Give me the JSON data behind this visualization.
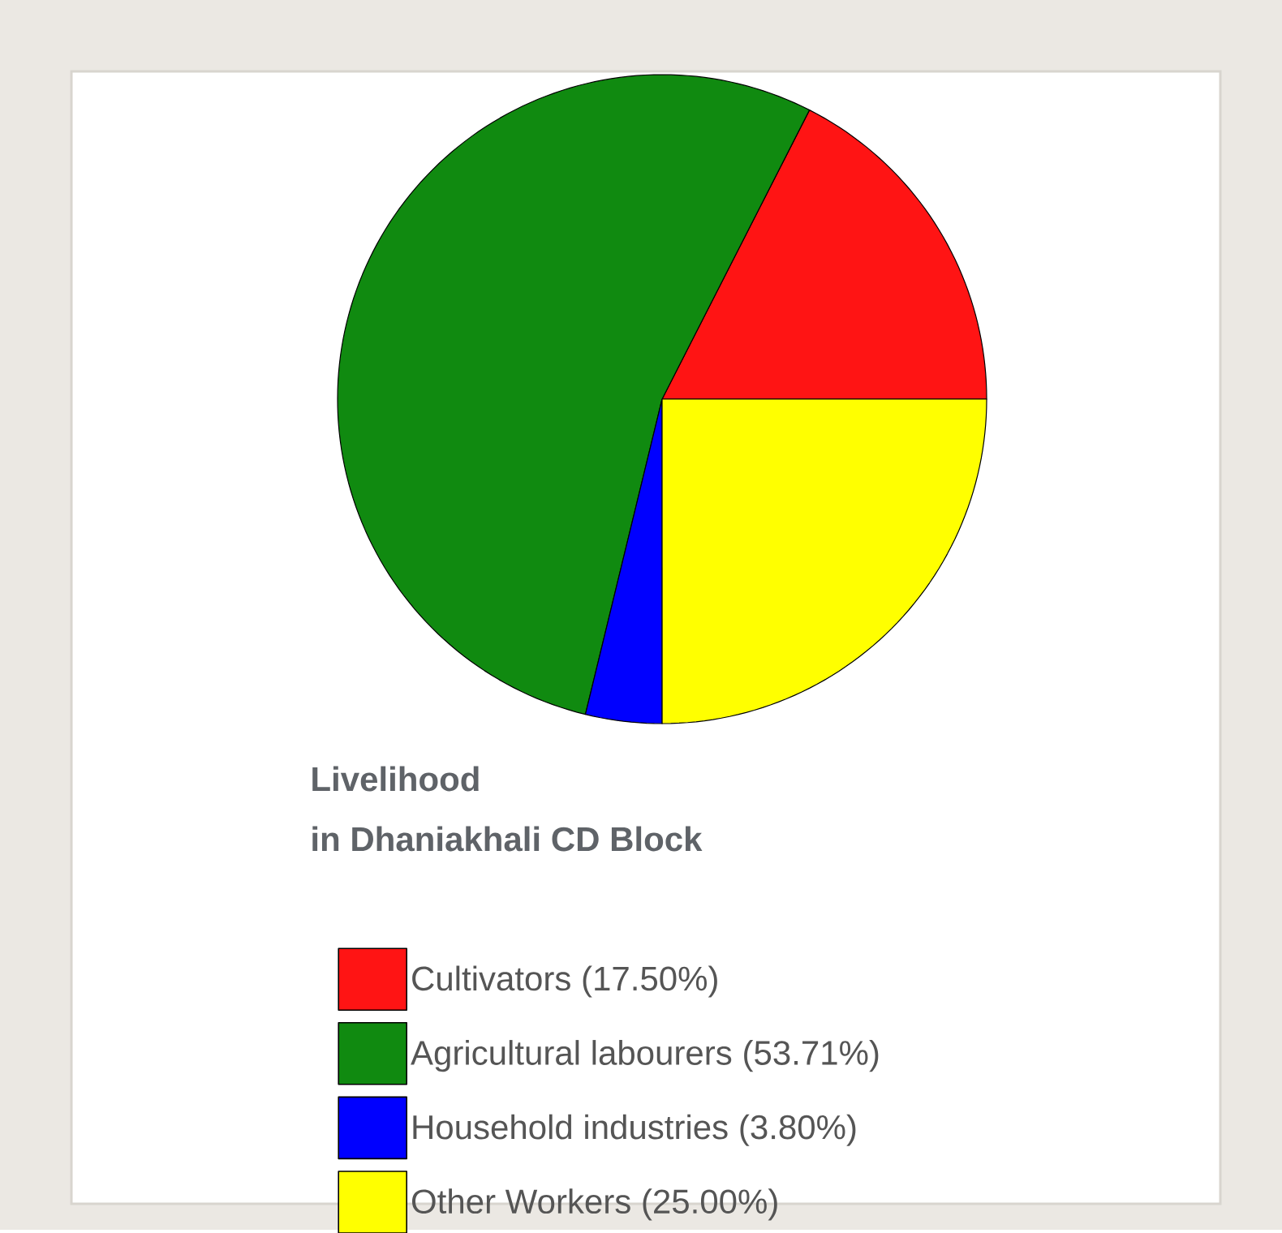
{
  "chart_data": {
    "type": "pie",
    "title": "Livelihood",
    "subtitle": "in Dhaniakhali CD Block",
    "categories": [
      "Cultivators",
      "Agricultural labourers",
      "Household industries",
      "Other Workers"
    ],
    "values": [
      17.5,
      53.71,
      3.8,
      25.0
    ],
    "value_labels": [
      "(17.50%)",
      "(53.71%)",
      "(3.80%)",
      "(25.00%)"
    ],
    "colors": [
      "#ff1414",
      "#108a10",
      "#0000ff",
      "#ffff00"
    ],
    "legend": "bottom"
  }
}
